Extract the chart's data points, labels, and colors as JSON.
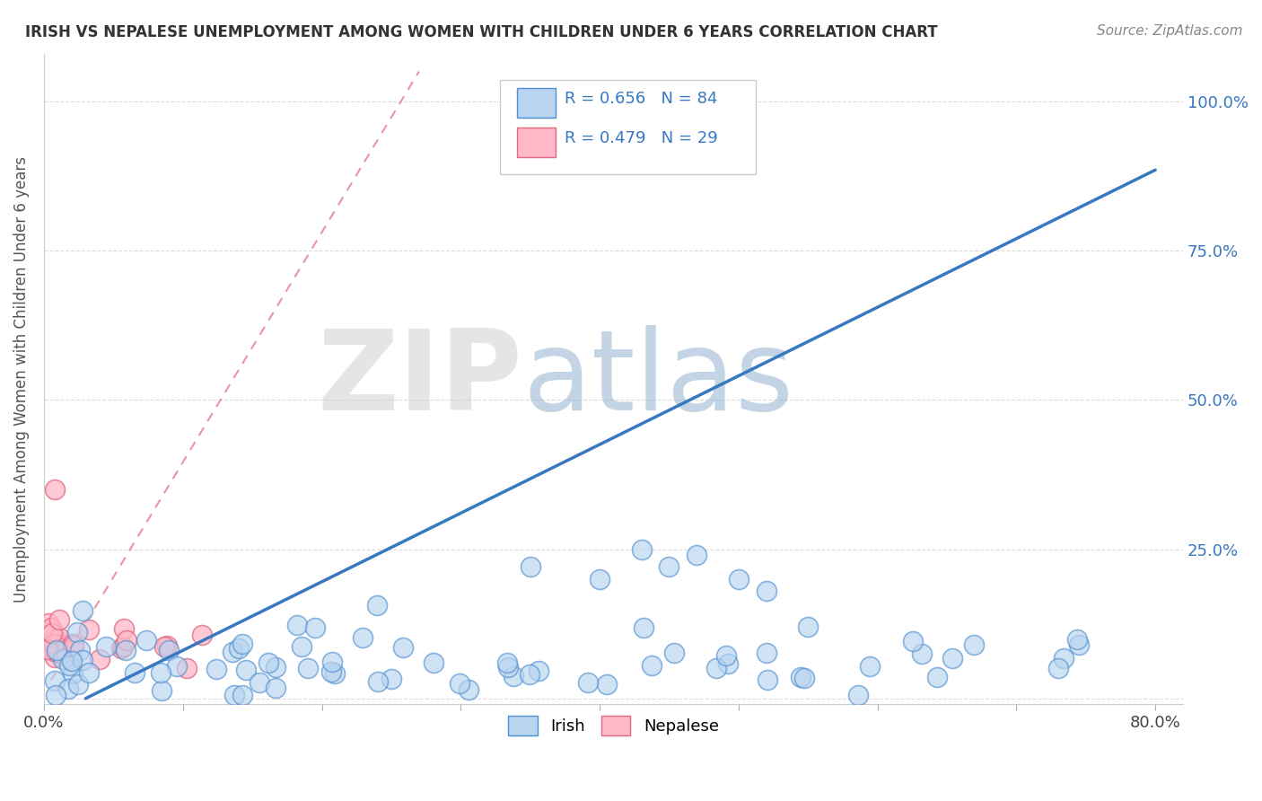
{
  "title": "IRISH VS NEPALESE UNEMPLOYMENT AMONG WOMEN WITH CHILDREN UNDER 6 YEARS CORRELATION CHART",
  "source_text": "Source: ZipAtlas.com",
  "ylabel": "Unemployment Among Women with Children Under 6 years",
  "xlim": [
    0.0,
    0.82
  ],
  "ylim": [
    -0.01,
    1.08
  ],
  "xtick_positions": [
    0.0,
    0.1,
    0.2,
    0.3,
    0.4,
    0.5,
    0.6,
    0.7,
    0.8
  ],
  "xticklabels": [
    "0.0%",
    "",
    "",
    "",
    "",
    "",
    "",
    "",
    "80.0%"
  ],
  "ytick_positions": [
    0.0,
    0.25,
    0.5,
    0.75,
    1.0
  ],
  "yticklabels": [
    "",
    "25.0%",
    "50.0%",
    "75.0%",
    "100.0%"
  ],
  "irish_R": 0.656,
  "irish_N": 84,
  "nepalese_R": 0.479,
  "nepalese_N": 29,
  "irish_face_color": "#b8d4f0",
  "irish_edge_color": "#5090d0",
  "nepalese_face_color": "#ffb8c8",
  "nepalese_edge_color": "#e06880",
  "irish_line_color": "#3878c0",
  "nepalese_line_color": "#e87890",
  "watermark_zip": "ZIP",
  "watermark_atlas": "atlas",
  "watermark_color_zip": "#c8c8c8",
  "watermark_color_atlas": "#88aacc",
  "legend_irish_color": "#b8d4f0",
  "legend_irish_edge": "#5090d0",
  "legend_nepalese_color": "#ffb8c8",
  "legend_nepalese_edge": "#e06880",
  "irish_line_x0": 0.03,
  "irish_line_y0": 0.0,
  "irish_line_x1": 0.8,
  "irish_line_y1": 0.885,
  "nep_line_x0": 0.005,
  "nep_line_y0": 0.03,
  "nep_line_x1": 0.27,
  "nep_line_y1": 1.05
}
